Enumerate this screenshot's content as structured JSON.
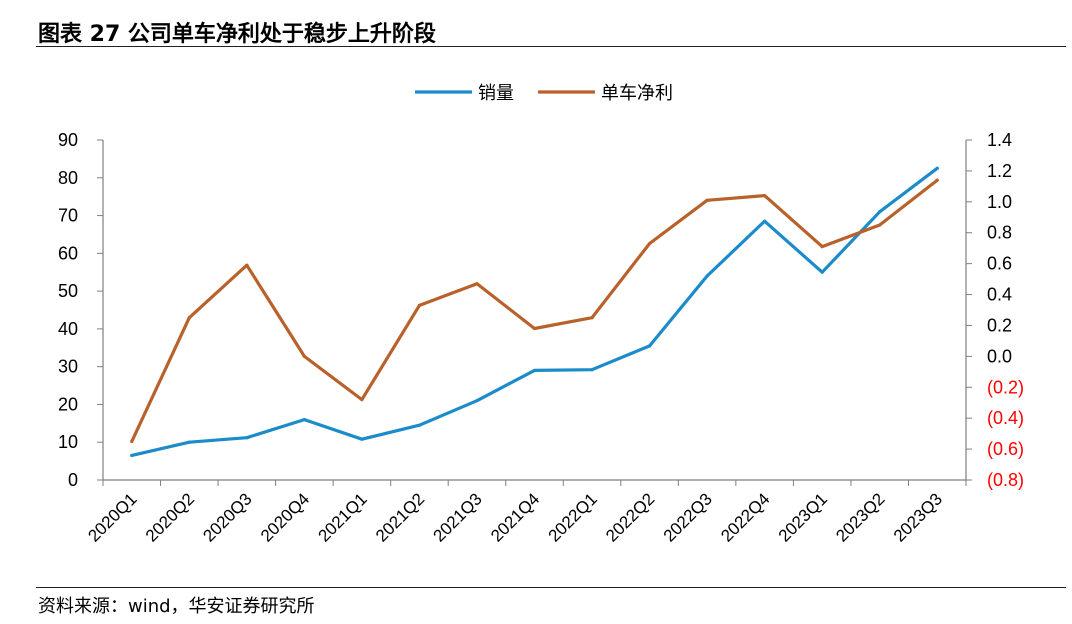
{
  "header": {
    "title": "图表 27 公司单车净利处于稳步上升阶段"
  },
  "footer": {
    "source": "资料来源：wind，华安证券研究所"
  },
  "colors": {
    "sales": "#1c8bc9",
    "profit": "#b9612a",
    "negative_tick": "#ff0000"
  },
  "chart_data": {
    "type": "line",
    "title": "",
    "categories": [
      "2020Q1",
      "2020Q2",
      "2020Q3",
      "2020Q4",
      "2021Q1",
      "2021Q2",
      "2021Q3",
      "2021Q4",
      "2022Q1",
      "2022Q2",
      "2022Q3",
      "2022Q4",
      "2023Q1",
      "2023Q2",
      "2023Q3"
    ],
    "series": [
      {
        "name": "销量",
        "axis": "left",
        "values": [
          6.5,
          10,
          11.2,
          16,
          10.8,
          14.5,
          21,
          29,
          29.2,
          35.5,
          54,
          68.5,
          55,
          71,
          82.5
        ]
      },
      {
        "name": "单车净利",
        "axis": "right",
        "values": [
          -0.55,
          0.25,
          0.59,
          0.0,
          -0.28,
          0.33,
          0.47,
          0.18,
          0.25,
          0.73,
          1.01,
          1.04,
          0.71,
          0.85,
          1.14
        ]
      }
    ],
    "left_axis": {
      "ylim": [
        0,
        90
      ],
      "ticks": [
        "0",
        "10",
        "20",
        "30",
        "40",
        "50",
        "60",
        "70",
        "80",
        "90"
      ]
    },
    "right_axis": {
      "ylim": [
        -0.8,
        1.4
      ],
      "ticks": [
        "(0.8)",
        "(0.6)",
        "(0.4)",
        "(0.2)",
        "0.0",
        "0.2",
        "0.4",
        "0.6",
        "0.8",
        "1.0",
        "1.2",
        "1.4"
      ]
    },
    "legend_position": "top-center",
    "grid": false
  }
}
